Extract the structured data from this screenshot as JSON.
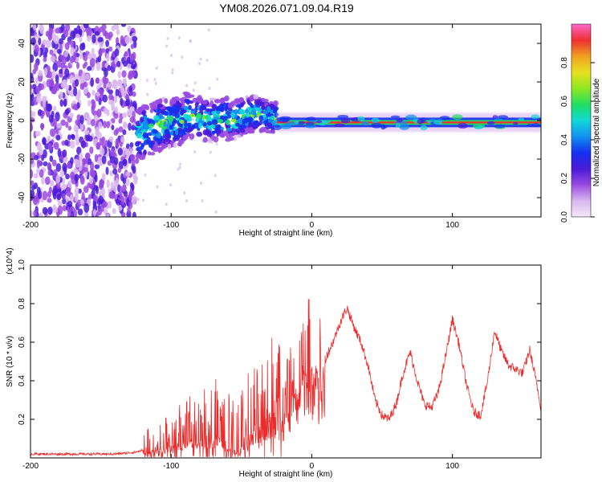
{
  "title": "YM08.2026.071.09.04.R19",
  "colors": {
    "snr_line": "#ee2b2b",
    "plot_bg": "#ffffff",
    "colorbar_stops": [
      "#f3e8f9",
      "#d9b7ef",
      "#9a4ae0",
      "#4a1ad8",
      "#1530ee",
      "#1090f0",
      "#10d8d8",
      "#20e060",
      "#8fe820",
      "#e8e020",
      "#f0a020",
      "#ee3030",
      "#ff66cc"
    ]
  },
  "chart_data": [
    {
      "type": "heatmap",
      "xlabel": "Height of straight line (km)",
      "ylabel": "Frequency (Hz)",
      "xlim": [
        -200,
        163
      ],
      "ylim": [
        -50,
        50
      ],
      "x_ticks": [
        {
          "value": -200,
          "label": "-200"
        },
        {
          "value": -100,
          "label": "-100"
        },
        {
          "value": 0,
          "label": "0"
        },
        {
          "value": 100,
          "label": "100"
        }
      ],
      "y_ticks": [
        {
          "value": -40,
          "label": "-40"
        },
        {
          "value": -20,
          "label": "-20"
        },
        {
          "value": 0,
          "label": "0"
        },
        {
          "value": 20,
          "label": "20"
        },
        {
          "value": 40,
          "label": "40"
        }
      ],
      "colorbar": {
        "label": "Normalized spectral amplitude",
        "range": [
          0,
          1
        ],
        "ticks": [
          {
            "value": 0.0,
            "label": "0.0"
          },
          {
            "value": 0.2,
            "label": "0.2"
          },
          {
            "value": 0.4,
            "label": "0.4"
          },
          {
            "value": 0.6,
            "label": "0.6"
          },
          {
            "value": 0.8,
            "label": "0.8"
          }
        ]
      },
      "regions": [
        {
          "name": "broadband noise",
          "x_range": [
            -200,
            -125
          ],
          "freq_range": [
            -50,
            50
          ],
          "amplitude": 0.15
        },
        {
          "name": "rising signal",
          "x_range": [
            -125,
            -25
          ],
          "freq_center_start": -5,
          "freq_center_end": 2,
          "amplitude": 0.4
        },
        {
          "name": "steady line",
          "x_range": [
            -25,
            163
          ],
          "freq_center": -1,
          "amplitude": 0.9
        }
      ]
    },
    {
      "type": "line",
      "xlabel": "Height of straight line (km)",
      "ylabel": "SNR (10 * v/v)",
      "y_scale_label": "(x10^4)",
      "xlim": [
        -200,
        163
      ],
      "ylim": [
        0,
        1.0
      ],
      "x_ticks": [
        {
          "value": -200,
          "label": "-200"
        },
        {
          "value": -100,
          "label": "-100"
        },
        {
          "value": 0,
          "label": "0"
        },
        {
          "value": 100,
          "label": "100"
        }
      ],
      "y_ticks": [
        {
          "value": 0.2,
          "label": "0.2"
        },
        {
          "value": 0.4,
          "label": "0.4"
        },
        {
          "value": 0.6,
          "label": "0.6"
        },
        {
          "value": 0.8,
          "label": "0.8"
        },
        {
          "value": 1.0,
          "label": "1.0"
        }
      ],
      "series": [
        {
          "name": "SNR",
          "x": [
            -200,
            -180,
            -160,
            -140,
            -125,
            -115,
            -105,
            -95,
            -85,
            -75,
            -68,
            -63,
            -58,
            -52,
            -46,
            -40,
            -34,
            -30,
            -26,
            -22,
            -18,
            -14,
            -10,
            -5,
            0,
            5,
            10,
            15,
            20,
            25,
            30,
            35,
            40,
            45,
            50,
            55,
            60,
            65,
            70,
            75,
            80,
            85,
            90,
            95,
            100,
            105,
            110,
            115,
            120,
            125,
            130,
            135,
            140,
            145,
            150,
            155,
            160,
            163
          ],
          "y": [
            0.02,
            0.02,
            0.02,
            0.02,
            0.03,
            0.05,
            0.07,
            0.1,
            0.14,
            0.13,
            0.17,
            0.09,
            0.06,
            0.05,
            0.12,
            0.18,
            0.25,
            0.32,
            0.3,
            0.36,
            0.38,
            0.4,
            0.44,
            0.56,
            0.6,
            0.54,
            0.52,
            0.6,
            0.7,
            0.78,
            0.68,
            0.6,
            0.48,
            0.3,
            0.22,
            0.2,
            0.28,
            0.44,
            0.55,
            0.4,
            0.28,
            0.26,
            0.34,
            0.52,
            0.72,
            0.58,
            0.38,
            0.24,
            0.22,
            0.4,
            0.66,
            0.55,
            0.48,
            0.46,
            0.44,
            0.56,
            0.38,
            0.26
          ]
        }
      ]
    }
  ]
}
